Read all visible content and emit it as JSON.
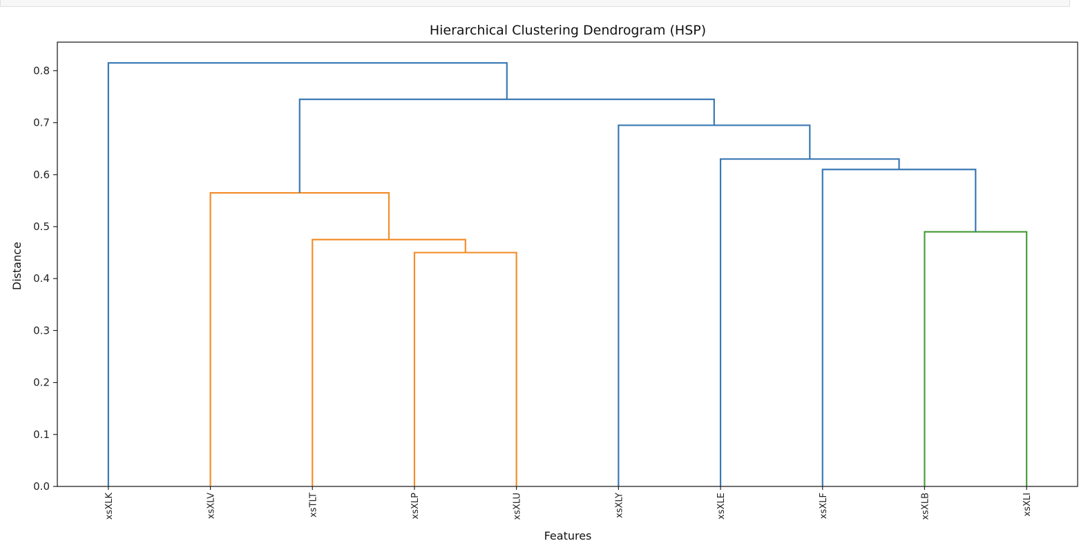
{
  "chart_data": {
    "type": "dendrogram",
    "title": "Hierarchical Clustering Dendrogram (HSP)",
    "xlabel": "Features",
    "ylabel": "Distance",
    "ylim": [
      0,
      0.855
    ],
    "yticks": [
      0.0,
      0.1,
      0.2,
      0.3,
      0.4,
      0.5,
      0.6,
      0.7,
      0.8
    ],
    "ytick_labels": [
      "0.0",
      "0.1",
      "0.2",
      "0.3",
      "0.4",
      "0.5",
      "0.6",
      "0.7",
      "0.8"
    ],
    "leaves": [
      "xsXLK",
      "xsXLV",
      "xsTLT",
      "xsXLP",
      "xsXLU",
      "xsXLY",
      "xsXLE",
      "xsXLF",
      "xsXLB",
      "xsXLI"
    ],
    "leaf_label_rotation": "vertical",
    "grid": false,
    "colors": {
      "blue": "#3a78b4",
      "orange": "#f28e2b",
      "green": "#4a9d3c"
    },
    "merges": [
      {
        "left": "xsXLP",
        "right": "xsXLU",
        "height": 0.45,
        "color": "orange"
      },
      {
        "left": "xsTLT",
        "right": "xsXLP+xsXLU",
        "height": 0.475,
        "color": "orange"
      },
      {
        "left": "xsXLV",
        "right": "xsTLT+xsXLP+xsXLU",
        "height": 0.565,
        "color": "orange"
      },
      {
        "left": "xsXLB",
        "right": "xsXLI",
        "height": 0.49,
        "color": "green"
      },
      {
        "left": "xsXLF",
        "right": "xsXLB+xsXLI",
        "height": 0.61,
        "color": "blue"
      },
      {
        "left": "xsXLE",
        "right": "xsXLF+xsXLB+xsXLI",
        "height": 0.63,
        "color": "blue"
      },
      {
        "left": "xsXLY",
        "right": "xsXLE+xsXLF+xsXLB+xsXLI",
        "height": 0.695,
        "color": "blue"
      },
      {
        "left": "xsXLV+xsTLT+xsXLP+xsXLU",
        "right": "xsXLY+xsXLE+xsXLF+xsXLB+xsXLI",
        "height": 0.745,
        "color": "blue"
      },
      {
        "left": "xsXLK",
        "right": "rest",
        "height": 0.815,
        "color": "blue"
      }
    ]
  }
}
